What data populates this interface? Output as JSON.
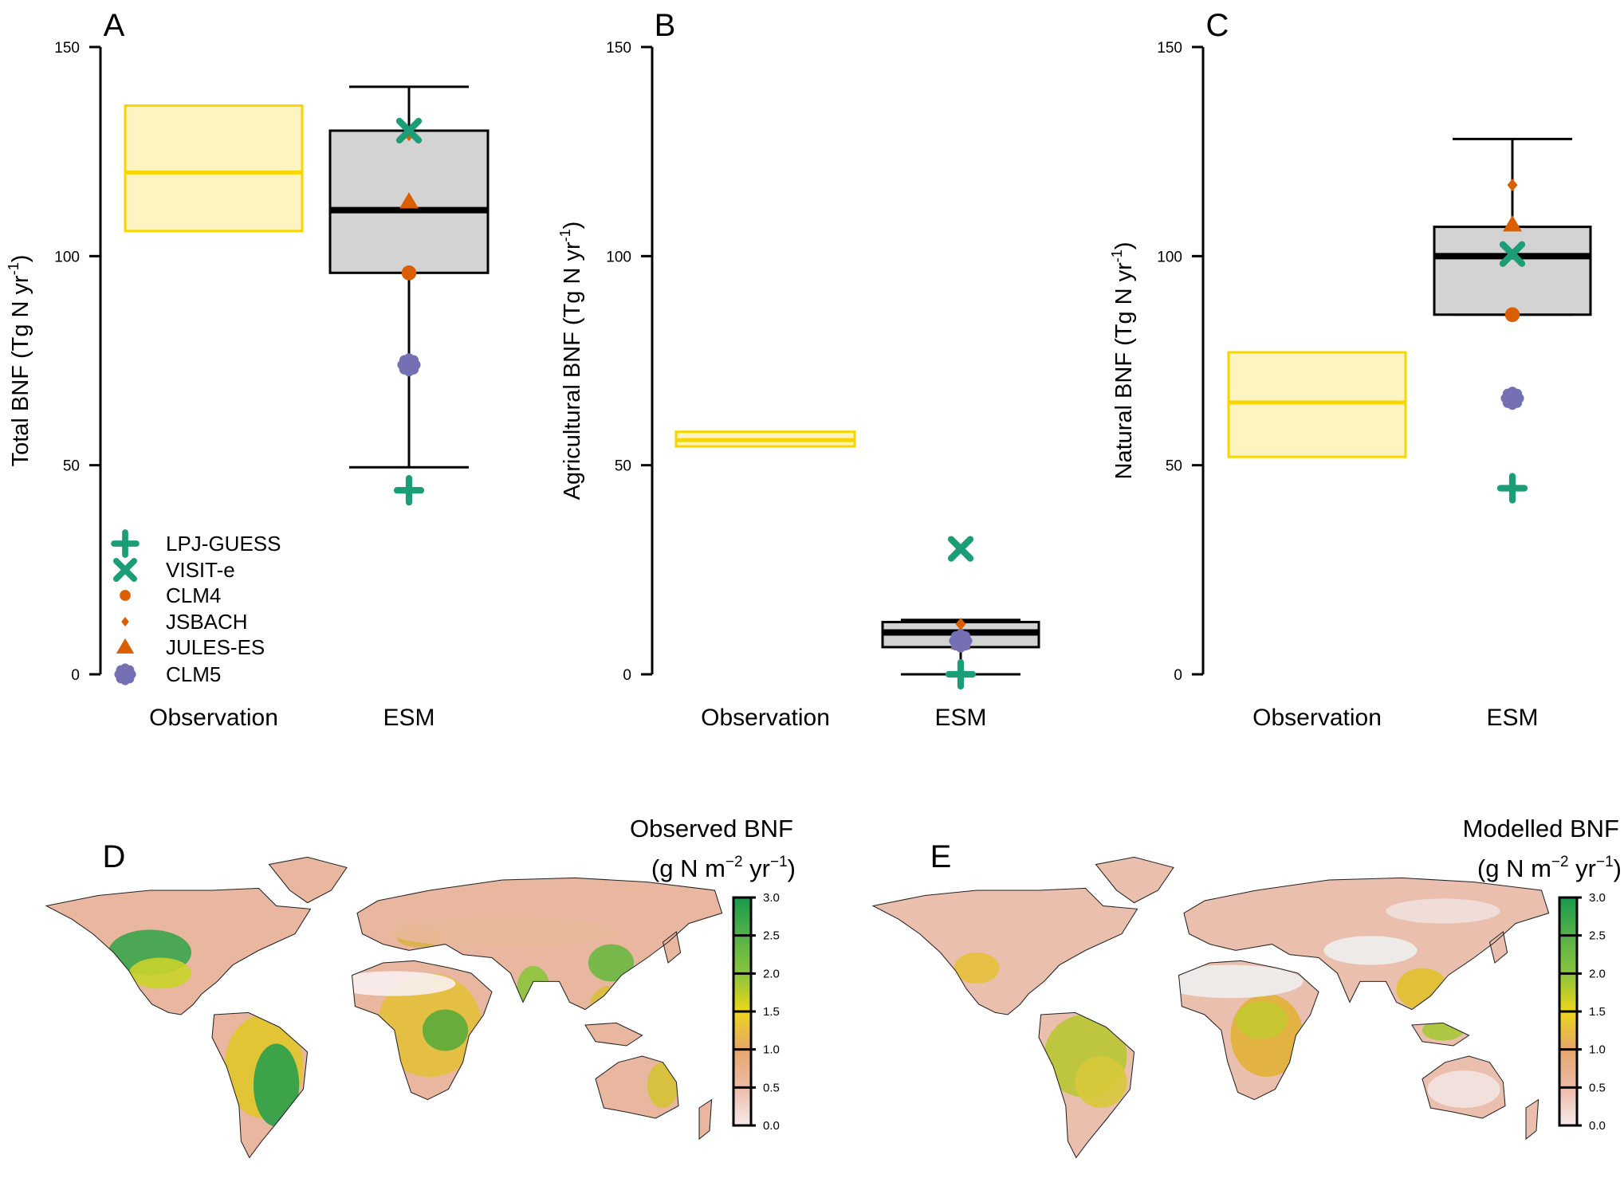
{
  "chart_data": [
    {
      "type": "box",
      "panel_label": "A",
      "ylabel": "Total BNF (Tg N yr",
      "ylabel_sup": "-1",
      "ylim": [
        0,
        150
      ],
      "yticks": [
        "0",
        "50",
        "100",
        "150"
      ],
      "categories": [
        "Observation",
        "ESM"
      ],
      "observation": {
        "lower": 106,
        "median": 120,
        "upper": 136
      },
      "esm": {
        "whisker_low": 49.5,
        "q1": 96,
        "median": 111,
        "q3": 130,
        "whisker_high": 140.5
      },
      "models": [
        {
          "name": "LPJ-GUESS",
          "value": 44
        },
        {
          "name": "VISIT-e",
          "value": 130
        },
        {
          "name": "CLM4",
          "value": 96
        },
        {
          "name": "JSBACH",
          "value": 129
        },
        {
          "name": "JULES-ES",
          "value": 113
        },
        {
          "name": "CLM5",
          "value": 74
        }
      ]
    },
    {
      "type": "box",
      "panel_label": "B",
      "ylabel": "Agricultural BNF (Tg N yr",
      "ylabel_sup": "-1",
      "ylim": [
        0,
        150
      ],
      "yticks": [
        "0",
        "50",
        "100",
        "150"
      ],
      "categories": [
        "Observation",
        "ESM"
      ],
      "observation": {
        "lower": 54.5,
        "median": 56,
        "upper": 58
      },
      "esm": {
        "whisker_low": 0,
        "q1": 6.5,
        "median": 10,
        "q3": 12.5,
        "whisker_high": 13
      },
      "models": [
        {
          "name": "LPJ-GUESS",
          "value": 0
        },
        {
          "name": "VISIT-e",
          "value": 30
        },
        {
          "name": "CLM4",
          "value": 8
        },
        {
          "name": "JSBACH",
          "value": 12
        },
        {
          "name": "JULES-ES",
          "value": 7.5
        },
        {
          "name": "CLM5",
          "value": 8
        }
      ]
    },
    {
      "type": "box",
      "panel_label": "C",
      "ylabel": "Natural BNF (Tg N yr",
      "ylabel_sup": "-1",
      "ylim": [
        0,
        150
      ],
      "yticks": [
        "0",
        "50",
        "100",
        "150"
      ],
      "categories": [
        "Observation",
        "ESM"
      ],
      "observation": {
        "lower": 52,
        "median": 65,
        "upper": 77
      },
      "esm": {
        "whisker_low": 86,
        "q1": 86,
        "median": 100,
        "q3": 107,
        "whisker_high": 128
      },
      "models": [
        {
          "name": "LPJ-GUESS",
          "value": 44.5
        },
        {
          "name": "VISIT-e",
          "value": 100.5
        },
        {
          "name": "CLM4",
          "value": 86
        },
        {
          "name": "JSBACH",
          "value": 117
        },
        {
          "name": "JULES-ES",
          "value": 107.5
        },
        {
          "name": "CLM5",
          "value": 66
        }
      ]
    }
  ],
  "legend": [
    {
      "name": "LPJ-GUESS",
      "marker": "plus",
      "color": "#1b9e77"
    },
    {
      "name": "VISIT-e",
      "marker": "cross",
      "color": "#1b9e77"
    },
    {
      "name": "CLM4",
      "marker": "circle",
      "color": "#d95f02"
    },
    {
      "name": "JSBACH",
      "marker": "diamond",
      "color": "#d95f02"
    },
    {
      "name": "JULES-ES",
      "marker": "triangle",
      "color": "#d95f02"
    },
    {
      "name": "CLM5",
      "marker": "flower",
      "color": "#7570b3"
    }
  ],
  "colors": {
    "obs_fill": "#fdf4c2",
    "obs_stroke": "#f7d600",
    "box_fill": "#d3d3d3"
  },
  "maps": [
    {
      "panel_label": "D",
      "title": "Observed BNF",
      "unit": "(g N m",
      "unit_sup1": "−2",
      "unit_mid": " yr",
      "unit_sup2": "−1",
      "unit_end": ")",
      "variant": "observed"
    },
    {
      "panel_label": "E",
      "title": "Modelled BNF",
      "unit": "(g N m",
      "unit_sup1": "−2",
      "unit_mid": " yr",
      "unit_sup2": "−1",
      "unit_end": ")",
      "variant": "modelled"
    }
  ],
  "colorbar": {
    "range": [
      0,
      3
    ],
    "ticks": [
      "0.0",
      "0.5",
      "1.0",
      "1.5",
      "2.0",
      "2.5",
      "3.0"
    ],
    "stops": [
      "#f6eaea",
      "#ecbba8",
      "#e6a56a",
      "#ecd719",
      "#8cc43c",
      "#55b04a",
      "#179a4b"
    ]
  }
}
